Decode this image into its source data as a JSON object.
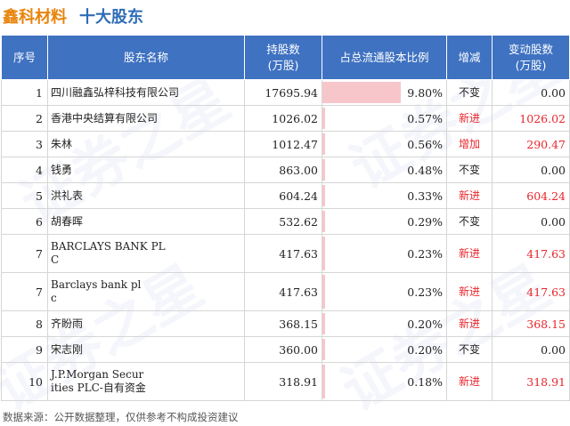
{
  "header": {
    "company": "鑫科材料",
    "section": "十大股东"
  },
  "columns": [
    "序号",
    "股东名称",
    "持股数\n(万股)",
    "占总流通股本比例",
    "增减",
    "变动股数\n(万股)"
  ],
  "colors": {
    "header_bg": "#3f72c1",
    "title_company": "#e8840c",
    "title_section": "#2f6cb6",
    "bar": "#f7c6cb",
    "change_red": "#e8262d"
  },
  "rows": [
    {
      "seq": "1",
      "name": "四川融鑫弘梓科技有限公司",
      "shares": "17695.94",
      "ratio": "9.80%",
      "ratio_value": 9.8,
      "change": "不变",
      "delta": "0.00",
      "highlight": false
    },
    {
      "seq": "2",
      "name": "香港中央结算有限公司",
      "shares": "1026.02",
      "ratio": "0.57%",
      "ratio_value": 0.57,
      "change": "新进",
      "delta": "1026.02",
      "highlight": true
    },
    {
      "seq": "3",
      "name": "朱林",
      "shares": "1012.47",
      "ratio": "0.56%",
      "ratio_value": 0.56,
      "change": "增加",
      "delta": "290.47",
      "highlight": true
    },
    {
      "seq": "4",
      "name": "钱勇",
      "shares": "863.00",
      "ratio": "0.48%",
      "ratio_value": 0.48,
      "change": "不变",
      "delta": "0.00",
      "highlight": false
    },
    {
      "seq": "5",
      "name": "洪礼表",
      "shares": "604.24",
      "ratio": "0.33%",
      "ratio_value": 0.33,
      "change": "新进",
      "delta": "604.24",
      "highlight": true
    },
    {
      "seq": "6",
      "name": "胡春晖",
      "shares": "532.62",
      "ratio": "0.29%",
      "ratio_value": 0.29,
      "change": "不变",
      "delta": "0.00",
      "highlight": false
    },
    {
      "seq": "7",
      "name": "BARCLAYS BANK PL\nC",
      "shares": "417.63",
      "ratio": "0.23%",
      "ratio_value": 0.23,
      "change": "新进",
      "delta": "417.63",
      "highlight": true
    },
    {
      "seq": "7",
      "name": "Barclays bank pl\nc",
      "shares": "417.63",
      "ratio": "0.23%",
      "ratio_value": 0.23,
      "change": "新进",
      "delta": "417.63",
      "highlight": true
    },
    {
      "seq": "8",
      "name": "齐盼雨",
      "shares": "368.15",
      "ratio": "0.20%",
      "ratio_value": 0.2,
      "change": "新进",
      "delta": "368.15",
      "highlight": true
    },
    {
      "seq": "9",
      "name": "宋志刚",
      "shares": "360.00",
      "ratio": "0.20%",
      "ratio_value": 0.2,
      "change": "不变",
      "delta": "0.00",
      "highlight": false
    },
    {
      "seq": "10",
      "name": "J.P.Morgan Secur\nities PLC-自有资金",
      "shares": "318.91",
      "ratio": "0.18%",
      "ratio_value": 0.18,
      "change": "新进",
      "delta": "318.91",
      "highlight": true
    }
  ],
  "footer": "数据来源：公开数据整理，仅供参考不构成投资建议",
  "watermark": "证券之星"
}
